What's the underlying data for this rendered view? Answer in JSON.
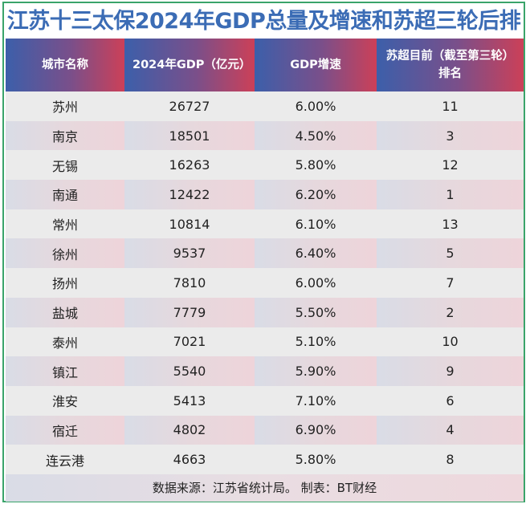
{
  "title": "江苏十三太保2024年GDP总量及增速和苏超三轮后排",
  "headers": [
    "城市名称",
    "2024年GDP（亿元）",
    "GDP增速",
    "苏超目前（截至第三轮）排名"
  ],
  "rows": [
    [
      "苏州",
      "26727",
      "6.00%",
      "11"
    ],
    [
      "南京",
      "18501",
      "4.50%",
      "3"
    ],
    [
      "无锡",
      "16263",
      "5.80%",
      "12"
    ],
    [
      "南通",
      "12422",
      "6.20%",
      "1"
    ],
    [
      "常州",
      "10814",
      "6.10%",
      "13"
    ],
    [
      "徐州",
      "9537",
      "6.40%",
      "5"
    ],
    [
      "扬州",
      "7810",
      "6.00%",
      "7"
    ],
    [
      "盐城",
      "7779",
      "5.50%",
      "2"
    ],
    [
      "泰州",
      "7021",
      "5.10%",
      "10"
    ],
    [
      "镇江",
      "5540",
      "5.90%",
      "9"
    ],
    [
      "淮安",
      "5413",
      "7.10%",
      "6"
    ],
    [
      "宿迁",
      "4802",
      "6.90%",
      "4"
    ],
    [
      "连云港",
      "4663",
      "5.80%",
      "8"
    ]
  ],
  "footer": "数据来源：江苏省统计局。 制表：BT财经",
  "colors": {
    "title": "#3b6cb5",
    "header_start": "#3c5faa",
    "header_end": "#cc4058",
    "border": "#3aa46a"
  }
}
